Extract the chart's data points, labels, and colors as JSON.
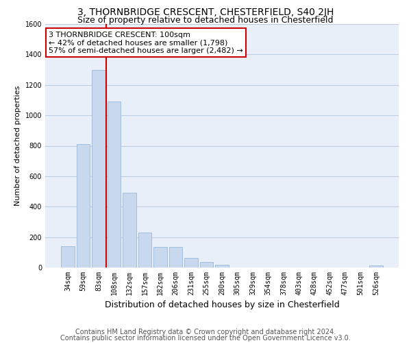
{
  "title": "3, THORNBRIDGE CRESCENT, CHESTERFIELD, S40 2JH",
  "subtitle": "Size of property relative to detached houses in Chesterfield",
  "xlabel": "Distribution of detached houses by size in Chesterfield",
  "ylabel": "Number of detached properties",
  "categories": [
    "34sqm",
    "59sqm",
    "83sqm",
    "108sqm",
    "132sqm",
    "157sqm",
    "182sqm",
    "206sqm",
    "231sqm",
    "255sqm",
    "280sqm",
    "305sqm",
    "329sqm",
    "354sqm",
    "378sqm",
    "403sqm",
    "428sqm",
    "452sqm",
    "477sqm",
    "501sqm",
    "526sqm"
  ],
  "values": [
    140,
    810,
    1300,
    1090,
    490,
    230,
    135,
    135,
    65,
    35,
    20,
    0,
    0,
    0,
    0,
    0,
    0,
    0,
    0,
    0,
    15
  ],
  "bar_color": "#c8d8ee",
  "bar_edge_color": "#9ab8d8",
  "vline_x_index": 2.5,
  "vline_color": "#cc0000",
  "annotation_text": "3 THORNBRIDGE CRESCENT: 100sqm\n← 42% of detached houses are smaller (1,798)\n57% of semi-detached houses are larger (2,482) →",
  "annotation_box_color": "#ffffff",
  "annotation_box_edge": "#cc0000",
  "ylim": [
    0,
    1600
  ],
  "yticks": [
    0,
    200,
    400,
    600,
    800,
    1000,
    1200,
    1400,
    1600
  ],
  "footer1": "Contains HM Land Registry data © Crown copyright and database right 2024.",
  "footer2": "Contains public sector information licensed under the Open Government Licence v3.0.",
  "background_color": "#ffffff",
  "grid_color": "#c0cce0",
  "title_fontsize": 10,
  "subtitle_fontsize": 9,
  "xlabel_fontsize": 9,
  "ylabel_fontsize": 8,
  "tick_fontsize": 7,
  "annotation_fontsize": 8,
  "footer_fontsize": 7
}
